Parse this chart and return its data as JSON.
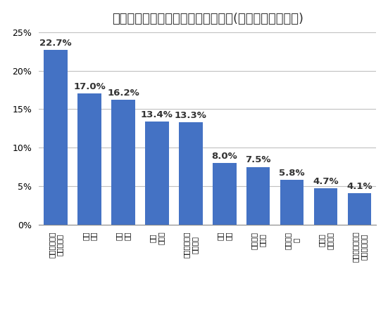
{
  "title": "自分の子供が現在行っている習い事(複数回答、上位陣)",
  "categories": [
    "算数・数学・\n理数系・塾",
    "図画\n工作",
    "水泳\n教室",
    "英語\n英会話",
    "音楽・楽器・\n歌・楽譜",
    "運動\n部活",
    "体操教室\n新体操",
    "サッカー\n－",
    "ピアノ\nレッスン",
    "ダンス・バレエ\nヒップホップ"
  ],
  "values": [
    22.7,
    17.0,
    16.2,
    13.4,
    13.3,
    8.0,
    7.5,
    5.8,
    4.7,
    4.1
  ],
  "labels": [
    "22.7%",
    "17.0%",
    "16.2%",
    "13.4%",
    "13.3%",
    "8.0%",
    "7.5%",
    "5.8%",
    "4.7%",
    "4.1%"
  ],
  "bar_color": "#4472C4",
  "ylim": [
    0,
    25
  ],
  "yticks": [
    0,
    5,
    10,
    15,
    20,
    25
  ],
  "ytick_labels": [
    "0%",
    "5%",
    "10%",
    "15%",
    "20%",
    "25%"
  ],
  "background_color": "#ffffff",
  "grid_color": "#c0c0c0",
  "title_fontsize": 13,
  "label_fontsize": 9.5,
  "tick_fontsize": 9
}
